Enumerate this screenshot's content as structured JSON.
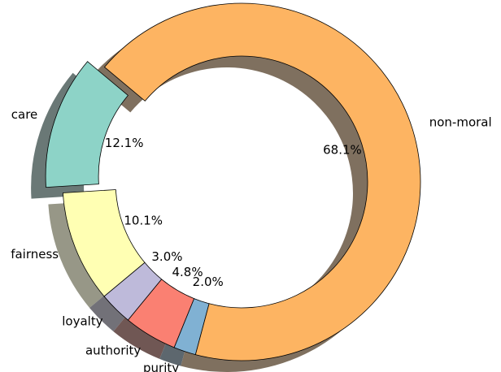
{
  "chart_data": {
    "type": "pie",
    "categories": [
      "care",
      "fairness",
      "loyalty",
      "authority",
      "purity",
      "non-moral"
    ],
    "values": [
      12.1,
      10.1,
      3.0,
      4.8,
      2.0,
      68.1
    ],
    "value_labels": [
      "12.1%",
      "10.1%",
      "3.0%",
      "4.8%",
      "2.0%",
      "68.1%"
    ],
    "colors": [
      "#8dd3c7",
      "#ffffb3",
      "#bebada",
      "#fa8072",
      "#80b1d3",
      "#fdb462"
    ],
    "explode": [
      0.1,
      0,
      0,
      0,
      0,
      0
    ],
    "donut": true,
    "shadow": true
  }
}
